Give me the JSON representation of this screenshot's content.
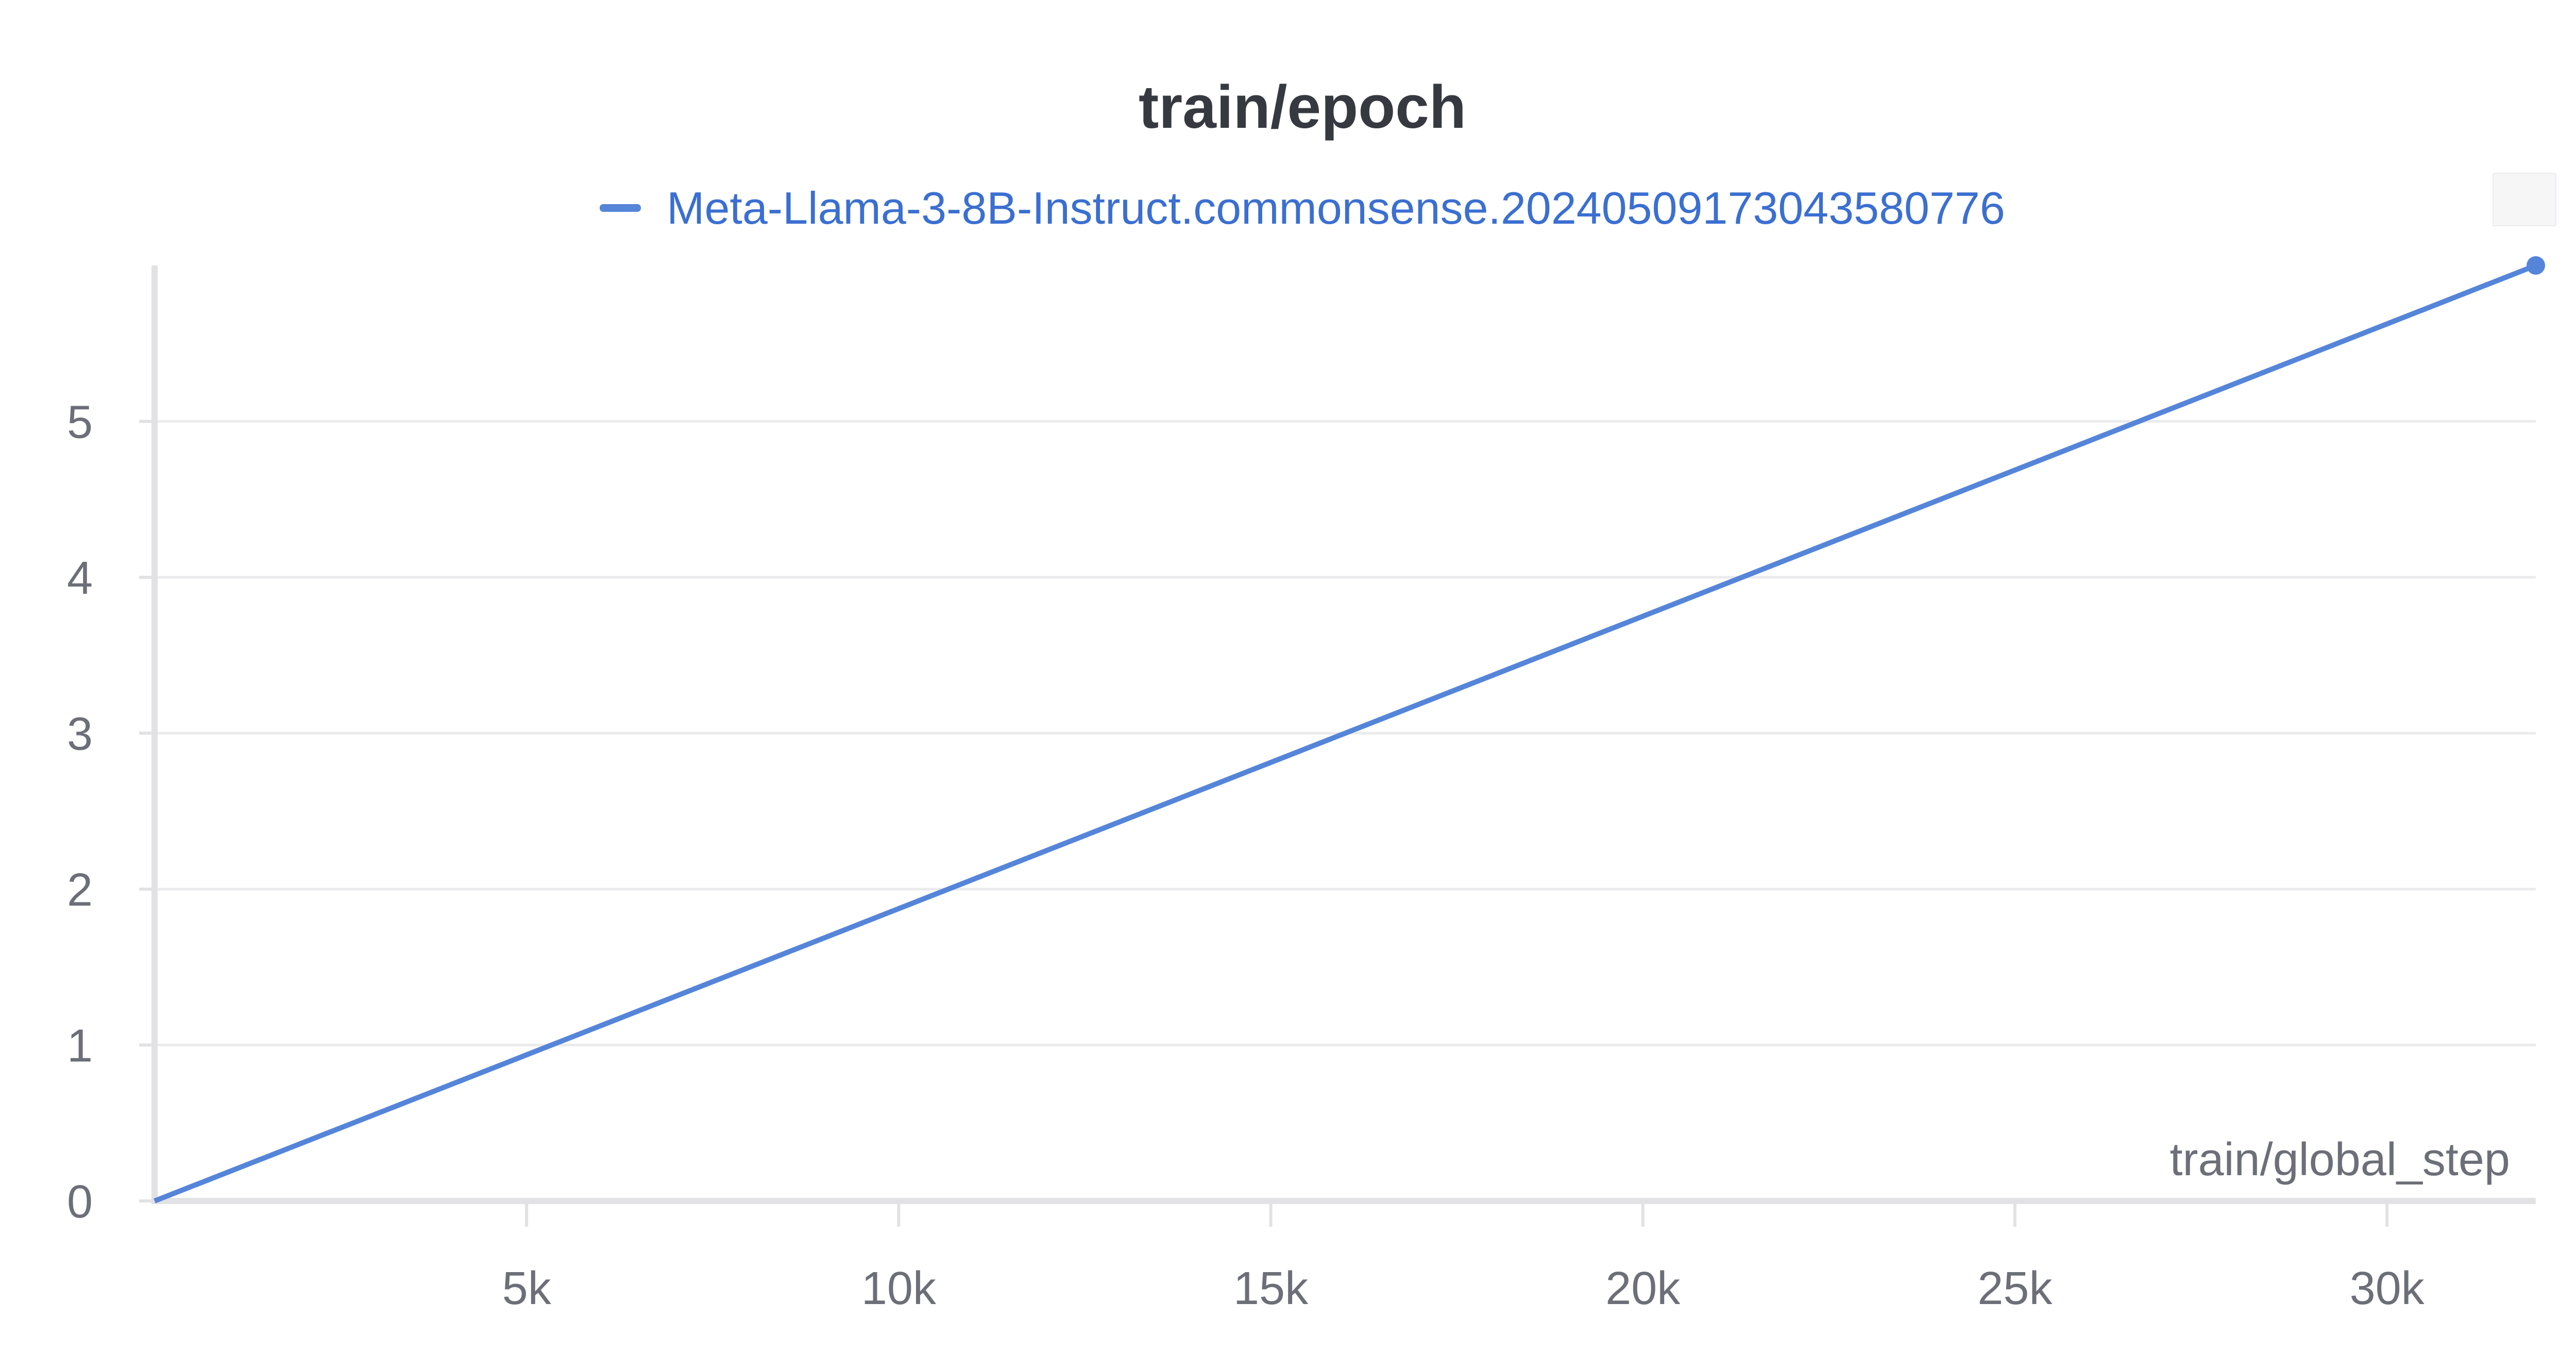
{
  "chart_data": {
    "type": "line",
    "title": "train/epoch",
    "xlabel": "train/global_step",
    "ylabel": "",
    "x_ticks": [
      5000,
      10000,
      15000,
      20000,
      25000,
      30000
    ],
    "x_tick_labels": [
      "5k",
      "10k",
      "15k",
      "20k",
      "25k",
      "30k"
    ],
    "y_ticks": [
      0,
      1,
      2,
      3,
      4,
      5
    ],
    "y_tick_labels": [
      "0",
      "1",
      "2",
      "3",
      "4",
      "5"
    ],
    "xlim": [
      0,
      32000
    ],
    "ylim": [
      0,
      6
    ],
    "grid": true,
    "legend_position": "top-center",
    "series": [
      {
        "name": "Meta-Llama-3-8B-Instruct.commonsense.20240509173043580776",
        "color": "#5585d9",
        "x": [
          0,
          32000
        ],
        "y": [
          0,
          6
        ]
      }
    ]
  }
}
